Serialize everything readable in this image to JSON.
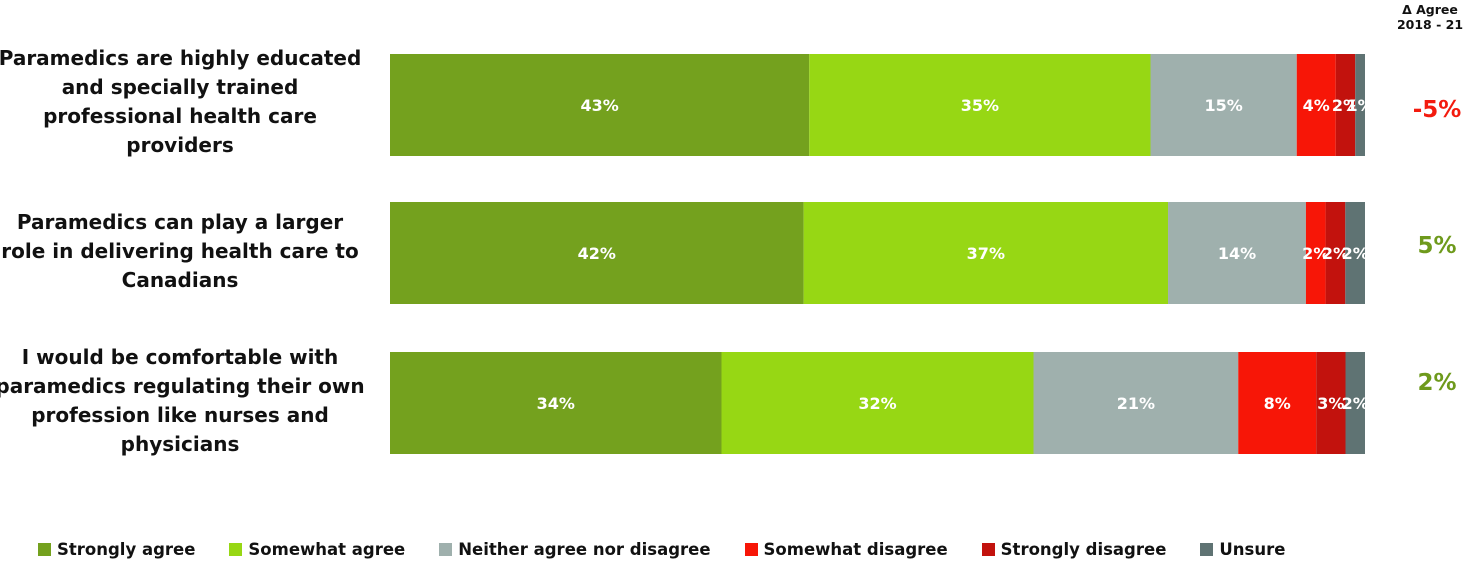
{
  "chart_data": {
    "type": "bar",
    "orientation": "horizontal",
    "stacked": true,
    "categories": [
      "Paramedics are highly educated and specially trained professional health care providers",
      "Paramedics can play a larger role in delivering health care to Canadians",
      "I would be comfortable with paramedics regulating their own profession like nurses and physicians"
    ],
    "series": [
      {
        "name": "Strongly agree",
        "color": "#74a11e",
        "values": [
          43,
          42,
          34
        ],
        "labels": [
          "43%",
          "42%",
          "34%"
        ]
      },
      {
        "name": "Somewhat agree",
        "color": "#97d714",
        "values": [
          35,
          37,
          32
        ],
        "labels": [
          "35%",
          "37%",
          "32%"
        ]
      },
      {
        "name": "Neither agree nor disagree",
        "color": "#9fb0ad",
        "values": [
          15,
          14,
          21
        ],
        "labels": [
          "15%",
          "14%",
          "21%"
        ]
      },
      {
        "name": "Somewhat disagree",
        "color": "#f71607",
        "values": [
          4,
          2,
          8
        ],
        "labels": [
          "4%",
          "2%",
          "8%"
        ]
      },
      {
        "name": "Strongly disagree",
        "color": "#c2120d",
        "values": [
          2,
          2,
          3
        ],
        "labels": [
          "2%",
          "2%",
          "3%"
        ]
      },
      {
        "name": "Unsure",
        "color": "#5f7373",
        "values": [
          1,
          2,
          2
        ],
        "labels": [
          "1%",
          "2%",
          "2%"
        ]
      }
    ],
    "xlim": [
      0,
      100
    ],
    "legend_position": "bottom",
    "grid": false,
    "delta": {
      "title_line1": "Δ Agree",
      "title_line2": "2018 - 21",
      "values": [
        "-5%",
        "5%",
        "2%"
      ],
      "colors": [
        "#f31b0e",
        "#6e9a1c",
        "#6e9a1c"
      ]
    }
  }
}
